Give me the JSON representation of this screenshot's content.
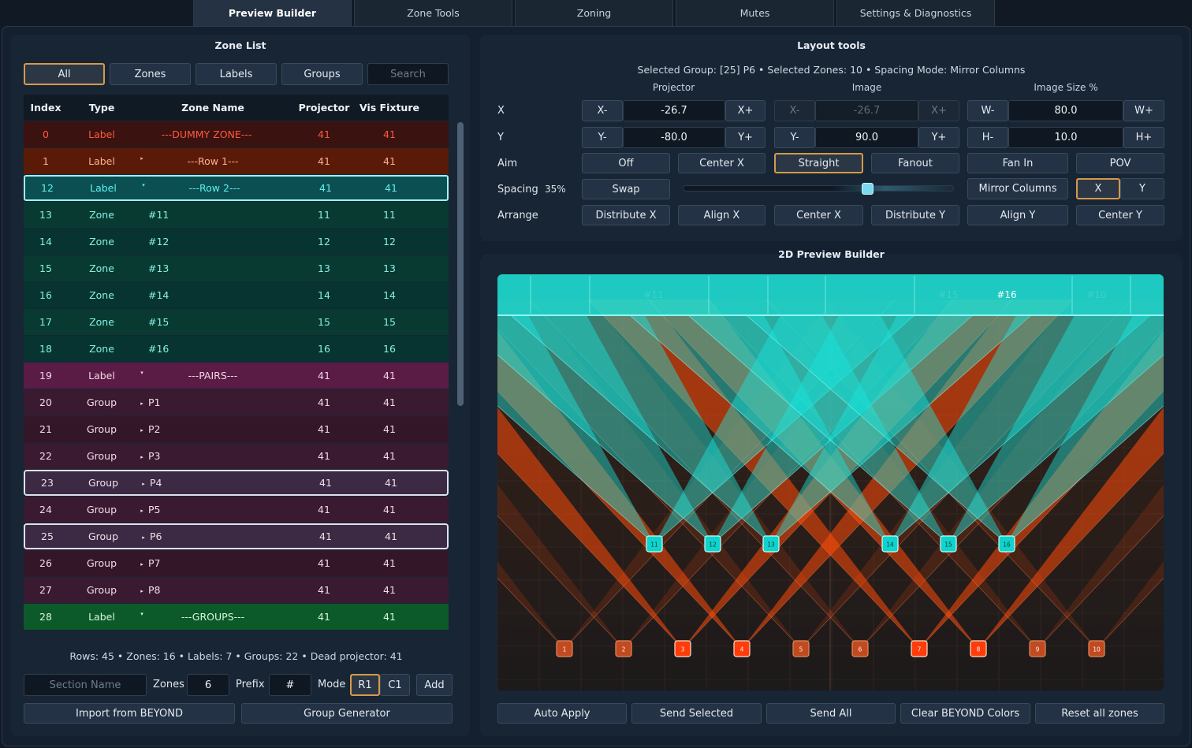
{
  "tabs": [
    "Preview Builder",
    "Zone Tools",
    "Zoning",
    "Mutes",
    "Settings & Diagnostics"
  ],
  "zone_list": {
    "title": "Zone List",
    "filters": [
      "All",
      "Zones",
      "Labels",
      "Groups"
    ],
    "search_placeholder": "Search",
    "columns": [
      "Index",
      "Type",
      "Zone Name",
      "Projector",
      "Vis Fixture"
    ],
    "rows": [
      {
        "index": "0",
        "type": "Label",
        "caret": "",
        "name": "---DUMMY ZONE---",
        "projector": "41",
        "vis": "41",
        "style": "dummy"
      },
      {
        "index": "1",
        "type": "Label",
        "caret": "▸",
        "name": "---Row 1---",
        "projector": "41",
        "vis": "41",
        "style": "row1"
      },
      {
        "index": "12",
        "type": "Label",
        "caret": "▾",
        "name": "---Row 2---",
        "projector": "41",
        "vis": "41",
        "style": "row2"
      },
      {
        "index": "13",
        "type": "Zone",
        "caret": "",
        "name": "#11",
        "projector": "11",
        "vis": "11",
        "style": "zone"
      },
      {
        "index": "14",
        "type": "Zone",
        "caret": "",
        "name": "#12",
        "projector": "12",
        "vis": "12",
        "style": "zone alt"
      },
      {
        "index": "15",
        "type": "Zone",
        "caret": "",
        "name": "#13",
        "projector": "13",
        "vis": "13",
        "style": "zone"
      },
      {
        "index": "16",
        "type": "Zone",
        "caret": "",
        "name": "#14",
        "projector": "14",
        "vis": "14",
        "style": "zone alt"
      },
      {
        "index": "17",
        "type": "Zone",
        "caret": "",
        "name": "#15",
        "projector": "15",
        "vis": "15",
        "style": "zone"
      },
      {
        "index": "18",
        "type": "Zone",
        "caret": "",
        "name": "#16",
        "projector": "16",
        "vis": "16",
        "style": "zone alt"
      },
      {
        "index": "19",
        "type": "Label",
        "caret": "▾",
        "name": "---PAIRS---",
        "projector": "41",
        "vis": "41",
        "style": "pairs"
      },
      {
        "index": "20",
        "type": "Group",
        "caret": "▸",
        "name": "P1",
        "projector": "41",
        "vis": "41",
        "style": "group"
      },
      {
        "index": "21",
        "type": "Group",
        "caret": "▸",
        "name": "P2",
        "projector": "41",
        "vis": "41",
        "style": "group alt"
      },
      {
        "index": "22",
        "type": "Group",
        "caret": "▸",
        "name": "P3",
        "projector": "41",
        "vis": "41",
        "style": "group"
      },
      {
        "index": "23",
        "type": "Group",
        "caret": "▸",
        "name": "P4",
        "projector": "41",
        "vis": "41",
        "style": "group sel"
      },
      {
        "index": "24",
        "type": "Group",
        "caret": "▸",
        "name": "P5",
        "projector": "41",
        "vis": "41",
        "style": "group"
      },
      {
        "index": "25",
        "type": "Group",
        "caret": "▸",
        "name": "P6",
        "projector": "41",
        "vis": "41",
        "style": "group sel"
      },
      {
        "index": "26",
        "type": "Group",
        "caret": "▸",
        "name": "P7",
        "projector": "41",
        "vis": "41",
        "style": "group alt"
      },
      {
        "index": "27",
        "type": "Group",
        "caret": "▸",
        "name": "P8",
        "projector": "41",
        "vis": "41",
        "style": "group"
      },
      {
        "index": "28",
        "type": "Label",
        "caret": "▾",
        "name": "---GROUPS---",
        "projector": "41",
        "vis": "41",
        "style": "groups"
      }
    ],
    "stats": "Rows: 45  •  Zones: 16  •  Labels: 7  •  Groups: 22  •  Dead projector: 41",
    "section_placeholder": "Section Name",
    "zones_label": "Zones",
    "zones_value": "6",
    "prefix_label": "Prefix",
    "prefix_value": "#",
    "mode_label": "Mode",
    "mode_r1": "R1",
    "mode_c1": "C1",
    "add": "Add",
    "import": "Import from BEYOND",
    "group_generator": "Group Generator"
  },
  "layout": {
    "title": "Layout tools",
    "info": "Selected Group: [25] P6  •  Selected Zones: 10  •  Spacing Mode: Mirror Columns",
    "col_projector": "Projector",
    "col_image": "Image",
    "col_imagesize": "Image Size %",
    "x_label": "X",
    "y_label": "Y",
    "aim_label": "Aim",
    "spacing_label": "Spacing",
    "spacing_value": "35%",
    "arrange_label": "Arrange",
    "proj_x": "-26.7",
    "proj_y": "-80.0",
    "img_x": "-26.7",
    "img_y": "90.0",
    "size_w": "80.0",
    "size_h": "10.0",
    "btn_xm": "X-",
    "btn_xp": "X+",
    "btn_ym": "Y-",
    "btn_yp": "Y+",
    "btn_wm": "W-",
    "btn_wp": "W+",
    "btn_hm": "H-",
    "btn_hp": "H+",
    "aim": [
      "Off",
      "Center X",
      "Straight",
      "Fanout",
      "Fan In",
      "POV"
    ],
    "swap": "Swap",
    "spacing_slider": 0.68,
    "mirror": "Mirror Columns",
    "axis_x": "X",
    "axis_y": "Y",
    "arrange": [
      "Distribute X",
      "Align X",
      "Center X",
      "Distribute Y",
      "Align Y",
      "Center Y"
    ]
  },
  "preview": {
    "title": "2D Preview Builder",
    "image_labels": [
      "#11",
      "#15",
      "#16",
      "#10"
    ],
    "teal_markers": [
      "11",
      "12",
      "13",
      "14",
      "15",
      "16"
    ],
    "orange_markers": [
      "1",
      "2",
      "3",
      "4",
      "5",
      "6",
      "7",
      "8",
      "9",
      "10"
    ],
    "colors": {
      "teal": "#19e6de",
      "orange": "#ff4a0a"
    },
    "actions": [
      "Auto Apply",
      "Send Selected",
      "Send All",
      "Clear BEYOND Colors",
      "Reset all zones"
    ]
  }
}
